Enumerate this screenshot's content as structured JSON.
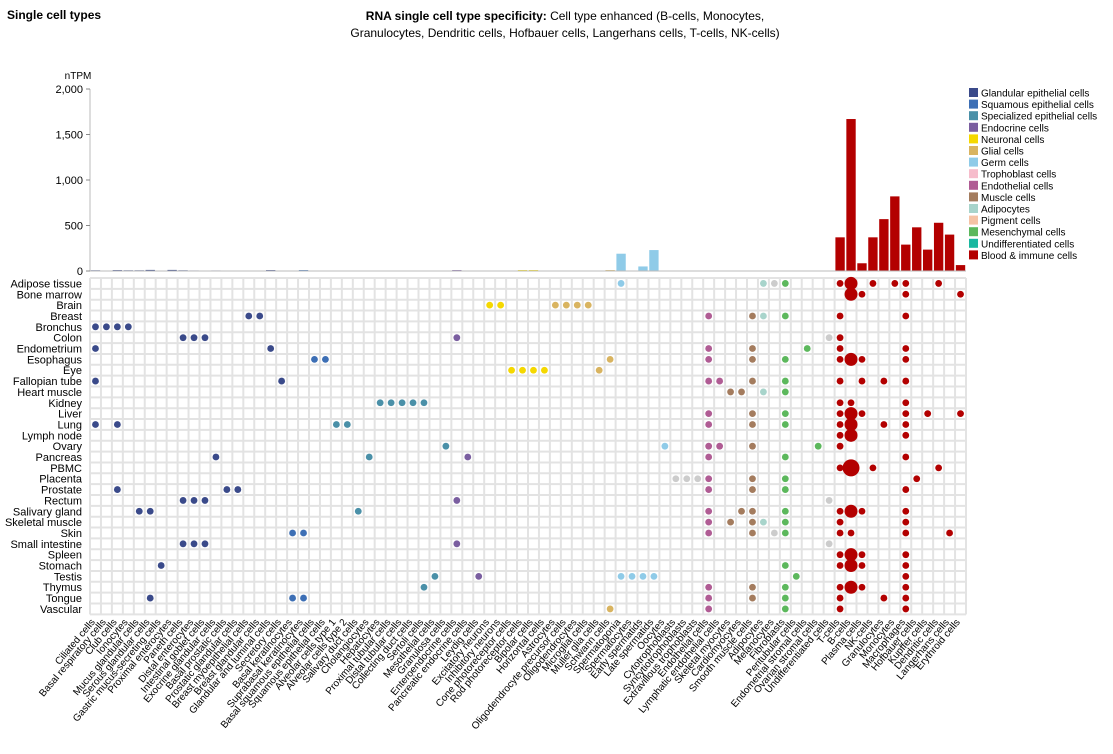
{
  "section_title": "Single cell types",
  "title_prefix": "RNA single cell type specificity:",
  "title_rest": "Cell type enhanced (B-cells, Monocytes, Granulocytes, Dendritic cells, Hofbauer cells, Langerhans cells, T-cells, NK-cells)",
  "chart_data": {
    "type": "bar",
    "ylabel": "nTPM",
    "ylim": [
      0,
      2000
    ],
    "yticks": [
      "0",
      "500",
      "1,000",
      "1,500",
      "2,000"
    ],
    "legend_position": "top-right",
    "legend": [
      {
        "name": "Glandular epithelial cells",
        "color": "#3a4a8a"
      },
      {
        "name": "Squamous epithelial cells",
        "color": "#3d6fb5"
      },
      {
        "name": "Specialized epithelial cells",
        "color": "#4a90a8"
      },
      {
        "name": "Endocrine cells",
        "color": "#7a5ea0"
      },
      {
        "name": "Neuronal cells",
        "color": "#f5d800"
      },
      {
        "name": "Glial cells",
        "color": "#d9b460"
      },
      {
        "name": "Germ cells",
        "color": "#8fcbe8"
      },
      {
        "name": "Trophoblast cells",
        "color": "#f6bccb"
      },
      {
        "name": "Endothelial cells",
        "color": "#b05c94"
      },
      {
        "name": "Muscle cells",
        "color": "#a47c5e"
      },
      {
        "name": "Adipocytes",
        "color": "#a8d4cb"
      },
      {
        "name": "Pigment cells",
        "color": "#f5c3a5"
      },
      {
        "name": "Mesenchymal cells",
        "color": "#5cb85c"
      },
      {
        "name": "Undifferentiated cells",
        "color": "#1ab8a0"
      },
      {
        "name": "Blood & immune cells",
        "color": "#b30000"
      }
    ],
    "categories": [
      "Ciliated cells",
      "Basal respiratory cells",
      "Club cells",
      "Ionocytes",
      "Mucus glandular cells",
      "Serous glandular cells",
      "Gastric mucus-secreting cells",
      "Proximal enterocytes",
      "Paneth cells",
      "Distal enterocytes",
      "Intestinal goblet cells",
      "Exocrine glandular cells",
      "Basal prostatic cells",
      "Prostatic glandular cells",
      "Breast myoepithelial cells",
      "Breast glandular cells",
      "Glandular and luminal cells",
      "Secretory cells",
      "Basal keratinocytes",
      "Suprabasal keratinocytes",
      "Basal squamous epithelial cells",
      "Squamous epithelial cells",
      "Alveolar cells type 1",
      "Alveolar cells type 2",
      "Salivary duct cells",
      "Cholangiocytes",
      "Hepatocytes",
      "Proximal tubular cells",
      "Distal tubular cells",
      "Collecting duct cells",
      "Sertoli cells",
      "Mesothelial cells",
      "Granulosa cells",
      "Enteroendocrine cells",
      "Pancreatic endocrine cells",
      "Leydig cells",
      "Excitatory neurons",
      "Inhibitory neurons",
      "Cone photoreceptor cells",
      "Rod photoreceptor cells",
      "Bipolar cells",
      "Horizontal cells",
      "Astrocytes",
      "Oligodendrocyte precursor cells",
      "Oligodendrocytes",
      "Microglial cells",
      "Muller glia cells",
      "Schwann cells",
      "Spermatogonia",
      "Spermatocytes",
      "Early spermatids",
      "Late spermatids",
      "Oocytes",
      "Cytotrophoblasts",
      "Syncytiotrophoblasts",
      "Extravillous trophoblasts",
      "Endothelial cells",
      "Lymphatic endothelial cells",
      "Skeletal myocytes",
      "Cardiomyocytes",
      "Smooth muscle cells",
      "Adipocytes",
      "Melanocytes",
      "Fibroblasts",
      "Peritubular cells",
      "Endometrial stromal cells",
      "Ovarian stromal cells",
      "Undifferentiated cells",
      "T-cells",
      "B-cells",
      "Plasma cells",
      "NK-cells",
      "Granulocytes",
      "Monocytes",
      "Macrophages",
      "Hofbauer cells",
      "Kupffer cells",
      "Dendritic cells",
      "Langerhans cells",
      "Erythroid cells"
    ],
    "groups": [
      0,
      0,
      0,
      0,
      0,
      0,
      0,
      0,
      0,
      0,
      0,
      0,
      0,
      0,
      0,
      0,
      0,
      0,
      1,
      1,
      1,
      1,
      2,
      2,
      2,
      2,
      2,
      2,
      2,
      2,
      2,
      2,
      2,
      3,
      3,
      3,
      4,
      4,
      4,
      4,
      4,
      4,
      5,
      5,
      5,
      5,
      5,
      5,
      6,
      6,
      6,
      6,
      6,
      7,
      7,
      7,
      8,
      8,
      9,
      9,
      9,
      10,
      11,
      12,
      12,
      12,
      12,
      13,
      14,
      14,
      14,
      14,
      14,
      14,
      14,
      14,
      14,
      14,
      14,
      14
    ],
    "values": [
      8,
      5,
      10,
      8,
      8,
      12,
      5,
      12,
      8,
      6,
      5,
      6,
      5,
      5,
      5,
      4,
      10,
      3,
      3,
      10,
      5,
      5,
      2,
      2,
      3,
      4,
      2,
      2,
      3,
      3,
      2,
      2,
      3,
      10,
      4,
      2,
      2,
      2,
      4,
      10,
      10,
      4,
      2,
      4,
      2,
      4,
      4,
      10,
      190,
      5,
      50,
      230,
      5,
      2,
      2,
      2,
      4,
      3,
      4,
      3,
      5,
      2,
      2,
      3,
      2,
      2,
      5,
      2,
      370,
      1670,
      85,
      370,
      570,
      820,
      290,
      480,
      235,
      530,
      400,
      65
    ],
    "tissues": [
      "Adipose tissue",
      "Bone marrow",
      "Brain",
      "Breast",
      "Bronchus",
      "Colon",
      "Endometrium",
      "Esophagus",
      "Eye",
      "Fallopian tube",
      "Heart muscle",
      "Kidney",
      "Liver",
      "Lung",
      "Lymph node",
      "Ovary",
      "Pancreas",
      "PBMC",
      "Placenta",
      "Prostate",
      "Rectum",
      "Salivary gland",
      "Skeletal muscle",
      "Skin",
      "Small intestine",
      "Spleen",
      "Stomach",
      "Testis",
      "Thymus",
      "Tongue",
      "Vascular"
    ],
    "dots": [
      [
        0,
        48,
        1
      ],
      [
        0,
        61,
        1
      ],
      [
        0,
        62,
        1
      ],
      [
        0,
        63,
        1
      ],
      [
        0,
        68,
        1
      ],
      [
        0,
        69,
        2
      ],
      [
        0,
        71,
        1
      ],
      [
        0,
        73,
        1
      ],
      [
        0,
        74,
        1
      ],
      [
        0,
        77,
        1
      ],
      [
        1,
        69,
        2
      ],
      [
        1,
        70,
        1
      ],
      [
        1,
        74,
        1
      ],
      [
        1,
        79,
        1
      ],
      [
        2,
        36,
        1
      ],
      [
        2,
        37,
        1
      ],
      [
        2,
        42,
        1
      ],
      [
        2,
        43,
        1
      ],
      [
        2,
        44,
        1
      ],
      [
        2,
        45,
        1
      ],
      [
        3,
        14,
        1
      ],
      [
        3,
        15,
        1
      ],
      [
        3,
        56,
        1
      ],
      [
        3,
        60,
        1
      ],
      [
        3,
        61,
        1
      ],
      [
        3,
        63,
        1
      ],
      [
        3,
        68,
        1
      ],
      [
        3,
        74,
        1
      ],
      [
        4,
        0,
        1
      ],
      [
        4,
        1,
        1
      ],
      [
        4,
        2,
        1
      ],
      [
        4,
        3,
        1
      ],
      [
        5,
        8,
        1
      ],
      [
        5,
        9,
        1
      ],
      [
        5,
        10,
        1
      ],
      [
        5,
        33,
        1
      ],
      [
        5,
        67,
        1
      ],
      [
        5,
        68,
        1
      ],
      [
        6,
        0,
        1
      ],
      [
        6,
        16,
        1
      ],
      [
        6,
        56,
        1
      ],
      [
        6,
        60,
        1
      ],
      [
        6,
        65,
        1
      ],
      [
        6,
        68,
        1
      ],
      [
        6,
        74,
        1
      ],
      [
        7,
        20,
        1
      ],
      [
        7,
        21,
        1
      ],
      [
        7,
        47,
        1
      ],
      [
        7,
        56,
        1
      ],
      [
        7,
        60,
        1
      ],
      [
        7,
        63,
        1
      ],
      [
        7,
        68,
        1
      ],
      [
        7,
        69,
        2
      ],
      [
        7,
        70,
        1
      ],
      [
        7,
        74,
        1
      ],
      [
        8,
        38,
        1
      ],
      [
        8,
        39,
        1
      ],
      [
        8,
        40,
        1
      ],
      [
        8,
        41,
        1
      ],
      [
        8,
        46,
        1
      ],
      [
        9,
        0,
        1
      ],
      [
        9,
        17,
        1
      ],
      [
        9,
        56,
        1
      ],
      [
        9,
        57,
        1
      ],
      [
        9,
        60,
        1
      ],
      [
        9,
        63,
        1
      ],
      [
        9,
        68,
        1
      ],
      [
        9,
        70,
        1
      ],
      [
        9,
        72,
        1
      ],
      [
        9,
        74,
        1
      ],
      [
        10,
        58,
        1
      ],
      [
        10,
        59,
        1
      ],
      [
        10,
        61,
        1
      ],
      [
        10,
        63,
        1
      ],
      [
        11,
        26,
        1
      ],
      [
        11,
        27,
        1
      ],
      [
        11,
        28,
        1
      ],
      [
        11,
        29,
        1
      ],
      [
        11,
        30,
        1
      ],
      [
        11,
        68,
        1
      ],
      [
        11,
        69,
        1
      ],
      [
        11,
        74,
        1
      ],
      [
        12,
        56,
        1
      ],
      [
        12,
        60,
        1
      ],
      [
        12,
        63,
        1
      ],
      [
        12,
        68,
        1
      ],
      [
        12,
        69,
        2
      ],
      [
        12,
        70,
        1
      ],
      [
        12,
        74,
        1
      ],
      [
        12,
        76,
        1
      ],
      [
        12,
        79,
        1
      ],
      [
        13,
        0,
        1
      ],
      [
        13,
        2,
        1
      ],
      [
        13,
        22,
        1
      ],
      [
        13,
        23,
        1
      ],
      [
        13,
        56,
        1
      ],
      [
        13,
        60,
        1
      ],
      [
        13,
        63,
        1
      ],
      [
        13,
        68,
        1
      ],
      [
        13,
        69,
        2
      ],
      [
        13,
        72,
        1
      ],
      [
        13,
        74,
        1
      ],
      [
        14,
        68,
        1
      ],
      [
        14,
        69,
        2
      ],
      [
        14,
        74,
        1
      ],
      [
        15,
        32,
        1
      ],
      [
        15,
        52,
        1
      ],
      [
        15,
        56,
        1
      ],
      [
        15,
        57,
        1
      ],
      [
        15,
        60,
        1
      ],
      [
        15,
        66,
        1
      ],
      [
        15,
        68,
        1
      ],
      [
        16,
        11,
        1
      ],
      [
        16,
        25,
        1
      ],
      [
        16,
        34,
        1
      ],
      [
        16,
        56,
        1
      ],
      [
        16,
        63,
        1
      ],
      [
        16,
        74,
        1
      ],
      [
        17,
        68,
        1
      ],
      [
        17,
        69,
        3
      ],
      [
        17,
        71,
        1
      ],
      [
        17,
        77,
        1
      ],
      [
        18,
        53,
        1
      ],
      [
        18,
        54,
        1
      ],
      [
        18,
        55,
        1
      ],
      [
        18,
        56,
        1
      ],
      [
        18,
        60,
        1
      ],
      [
        18,
        63,
        1
      ],
      [
        18,
        75,
        1
      ],
      [
        19,
        2,
        1
      ],
      [
        19,
        12,
        1
      ],
      [
        19,
        13,
        1
      ],
      [
        19,
        56,
        1
      ],
      [
        19,
        60,
        1
      ],
      [
        19,
        63,
        1
      ],
      [
        19,
        74,
        1
      ],
      [
        20,
        8,
        1
      ],
      [
        20,
        9,
        1
      ],
      [
        20,
        10,
        1
      ],
      [
        20,
        33,
        1
      ],
      [
        20,
        67,
        1
      ],
      [
        21,
        4,
        1
      ],
      [
        21,
        5,
        1
      ],
      [
        21,
        24,
        1
      ],
      [
        21,
        56,
        1
      ],
      [
        21,
        59,
        1
      ],
      [
        21,
        60,
        1
      ],
      [
        21,
        63,
        1
      ],
      [
        21,
        68,
        1
      ],
      [
        21,
        69,
        2
      ],
      [
        21,
        70,
        1
      ],
      [
        21,
        74,
        1
      ],
      [
        22,
        56,
        1
      ],
      [
        22,
        58,
        1
      ],
      [
        22,
        60,
        1
      ],
      [
        22,
        61,
        1
      ],
      [
        22,
        63,
        1
      ],
      [
        22,
        68,
        1
      ],
      [
        22,
        74,
        1
      ],
      [
        23,
        18,
        1
      ],
      [
        23,
        19,
        1
      ],
      [
        23,
        56,
        1
      ],
      [
        23,
        60,
        1
      ],
      [
        23,
        62,
        1
      ],
      [
        23,
        63,
        1
      ],
      [
        23,
        68,
        1
      ],
      [
        23,
        69,
        1
      ],
      [
        23,
        74,
        1
      ],
      [
        23,
        78,
        1
      ],
      [
        24,
        8,
        1
      ],
      [
        24,
        9,
        1
      ],
      [
        24,
        10,
        1
      ],
      [
        24,
        33,
        1
      ],
      [
        24,
        67,
        1
      ],
      [
        25,
        68,
        1
      ],
      [
        25,
        69,
        2
      ],
      [
        25,
        70,
        1
      ],
      [
        25,
        74,
        1
      ],
      [
        26,
        6,
        1
      ],
      [
        26,
        63,
        1
      ],
      [
        26,
        68,
        1
      ],
      [
        26,
        69,
        2
      ],
      [
        26,
        70,
        1
      ],
      [
        26,
        74,
        1
      ],
      [
        27,
        31,
        1
      ],
      [
        27,
        35,
        1
      ],
      [
        27,
        48,
        1
      ],
      [
        27,
        49,
        1
      ],
      [
        27,
        50,
        1
      ],
      [
        27,
        51,
        1
      ],
      [
        27,
        64,
        1
      ],
      [
        27,
        74,
        1
      ],
      [
        28,
        30,
        1
      ],
      [
        28,
        56,
        1
      ],
      [
        28,
        60,
        1
      ],
      [
        28,
        63,
        1
      ],
      [
        28,
        68,
        1
      ],
      [
        28,
        69,
        2
      ],
      [
        28,
        70,
        1
      ],
      [
        28,
        74,
        1
      ],
      [
        29,
        5,
        1
      ],
      [
        29,
        18,
        1
      ],
      [
        29,
        19,
        1
      ],
      [
        29,
        56,
        1
      ],
      [
        29,
        60,
        1
      ],
      [
        29,
        63,
        1
      ],
      [
        29,
        68,
        1
      ],
      [
        29,
        72,
        1
      ],
      [
        29,
        74,
        1
      ],
      [
        30,
        47,
        1
      ],
      [
        30,
        56,
        1
      ],
      [
        30,
        63,
        1
      ],
      [
        30,
        68,
        1
      ],
      [
        30,
        74,
        1
      ]
    ]
  }
}
